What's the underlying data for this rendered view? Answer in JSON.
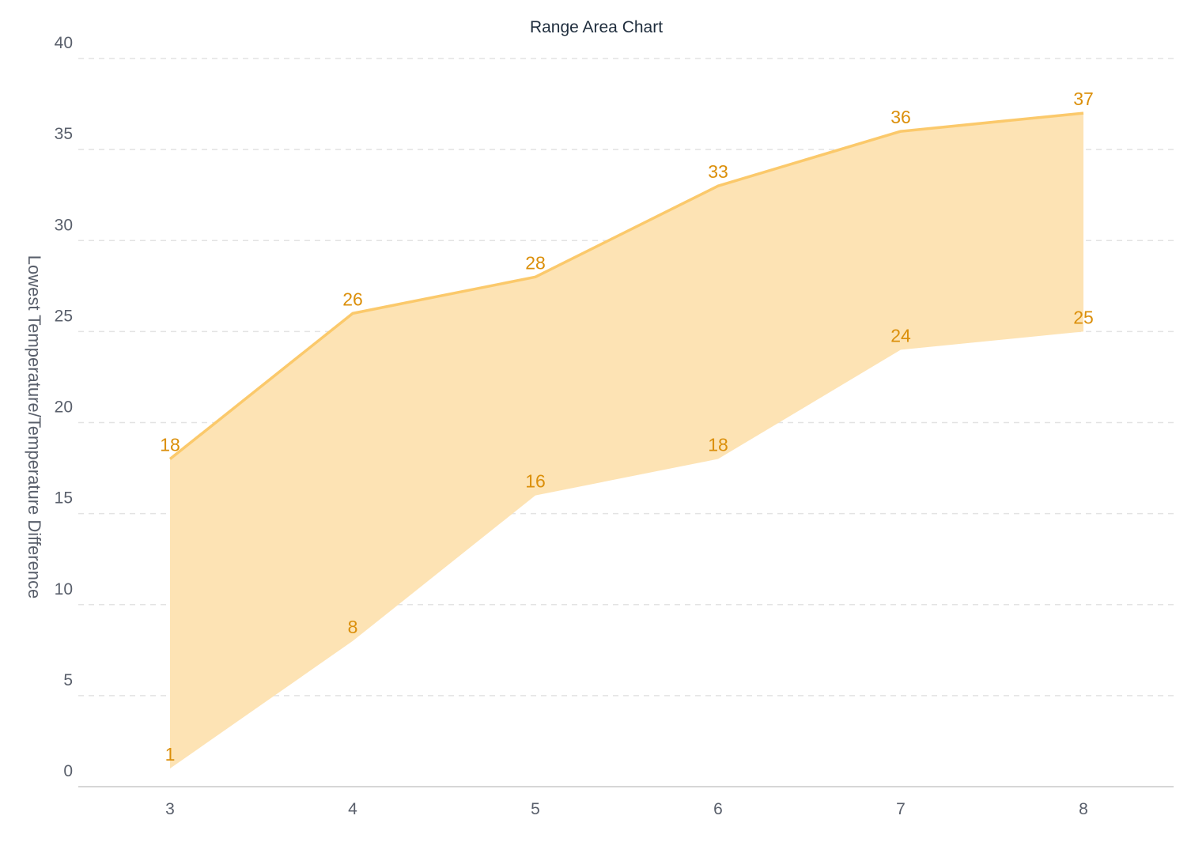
{
  "chart_data": {
    "type": "area",
    "subtype": "range-area",
    "title": "Range Area Chart",
    "xlabel": "",
    "ylabel": "Lowest Temperature/Temperature Difference",
    "categories": [
      "3",
      "4",
      "5",
      "6",
      "7",
      "8"
    ],
    "series": [
      {
        "low": [
          1,
          8,
          16,
          18,
          24,
          25
        ],
        "high": [
          18,
          26,
          28,
          33,
          36,
          37
        ]
      }
    ],
    "ylim": [
      0,
      40
    ],
    "yticks": [
      "0",
      "5",
      "10",
      "15",
      "20",
      "25",
      "30",
      "35",
      "40"
    ],
    "grid": true,
    "legend": "none",
    "data_labels": true,
    "colors": {
      "fill": "#fde3b4",
      "line": "#fbc96b",
      "label": "#db8f0a"
    }
  }
}
